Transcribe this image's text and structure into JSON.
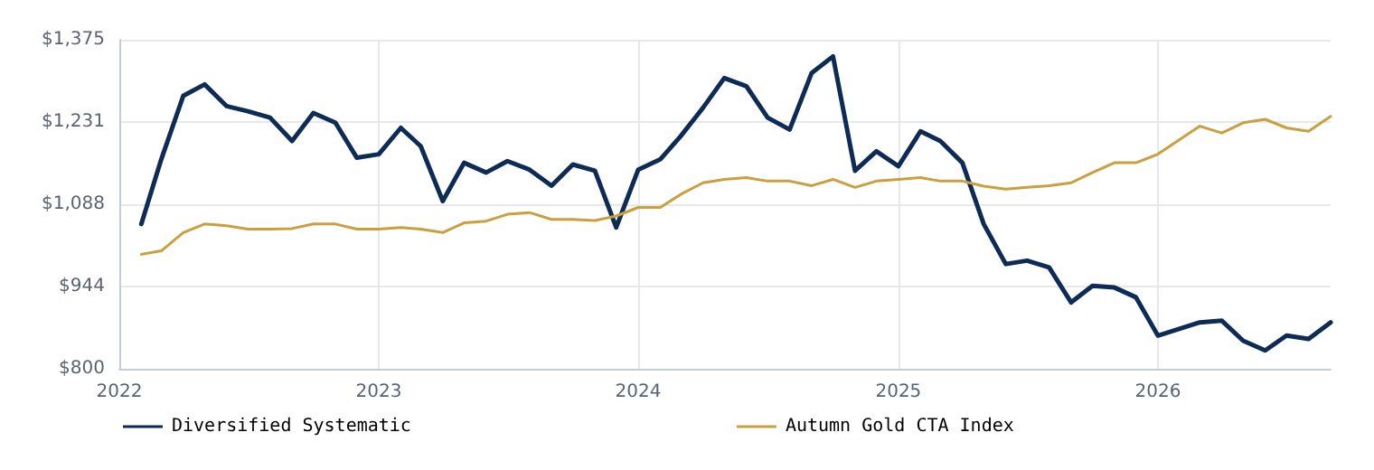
{
  "chart_data": {
    "type": "line",
    "x": [
      "2022-02",
      "2022-03",
      "2022-04",
      "2022-05",
      "2022-06",
      "2022-07",
      "2022-08",
      "2022-09",
      "2022-10",
      "2022-11",
      "2022-12",
      "2023-01",
      "2023-02",
      "2023-03",
      "2023-04",
      "2023-05",
      "2023-06",
      "2023-07",
      "2023-08",
      "2023-09",
      "2023-10",
      "2023-11",
      "2023-12",
      "2024-01",
      "2024-02",
      "2024-03",
      "2024-04",
      "2024-05",
      "2024-06",
      "2024-07",
      "2024-08",
      "2024-09",
      "2024-10",
      "2024-11",
      "2024-12",
      "2025-01",
      "2025-02",
      "2025-03",
      "2025-04",
      "2025-05",
      "2025-06",
      "2025-07",
      "2025-08",
      "2025-09",
      "2025-10",
      "2025-11",
      "2025-12",
      "2026-01",
      "2026-02",
      "2026-03",
      "2026-04",
      "2026-05",
      "2026-06",
      "2026-07",
      "2026-08",
      "2026-09"
    ],
    "series": [
      {
        "name": "Diversified Systematic",
        "color": "#0d2b55",
        "values": [
          1053,
          1166,
          1277,
          1297,
          1259,
          1250,
          1239,
          1198,
          1247,
          1230,
          1169,
          1175,
          1221,
          1189,
          1093,
          1160,
          1143,
          1163,
          1148,
          1120,
          1157,
          1146,
          1047,
          1148,
          1166,
          1207,
          1256,
          1308,
          1294,
          1239,
          1218,
          1317,
          1346,
          1146,
          1180,
          1154,
          1215,
          1198,
          1160,
          1053,
          983,
          989,
          977,
          916,
          945,
          942,
          925,
          858,
          870,
          881,
          884,
          849,
          832,
          858,
          852,
          881
        ]
      },
      {
        "name": "Autumn Gold CTA Index",
        "color": "#c9a03d",
        "values": [
          1000,
          1006,
          1038,
          1053,
          1050,
          1044,
          1044,
          1045,
          1053,
          1053,
          1044,
          1044,
          1047,
          1044,
          1038,
          1055,
          1058,
          1070,
          1073,
          1061,
          1061,
          1059,
          1067,
          1082,
          1082,
          1105,
          1125,
          1131,
          1134,
          1128,
          1128,
          1120,
          1131,
          1117,
          1128,
          1131,
          1134,
          1128,
          1128,
          1119,
          1114,
          1117,
          1120,
          1125,
          1143,
          1160,
          1160,
          1175,
          1201,
          1224,
          1212,
          1230,
          1236,
          1221,
          1215,
          1241
        ]
      }
    ],
    "xlim": [
      "2022-01",
      "2026-09"
    ],
    "xticks": [
      "2022",
      "2023",
      "2024",
      "2025",
      "2026"
    ],
    "ylim": [
      800,
      1375
    ],
    "yticks": [
      {
        "value": 800,
        "label": "$800"
      },
      {
        "value": 943.75,
        "label": "$944"
      },
      {
        "value": 1087.5,
        "label": "$1,088"
      },
      {
        "value": 1231.25,
        "label": "$1,231"
      },
      {
        "value": 1375,
        "label": "$1,375"
      }
    ],
    "grid": true,
    "legend": "bottom",
    "marker": "none",
    "line_style": "solid"
  }
}
